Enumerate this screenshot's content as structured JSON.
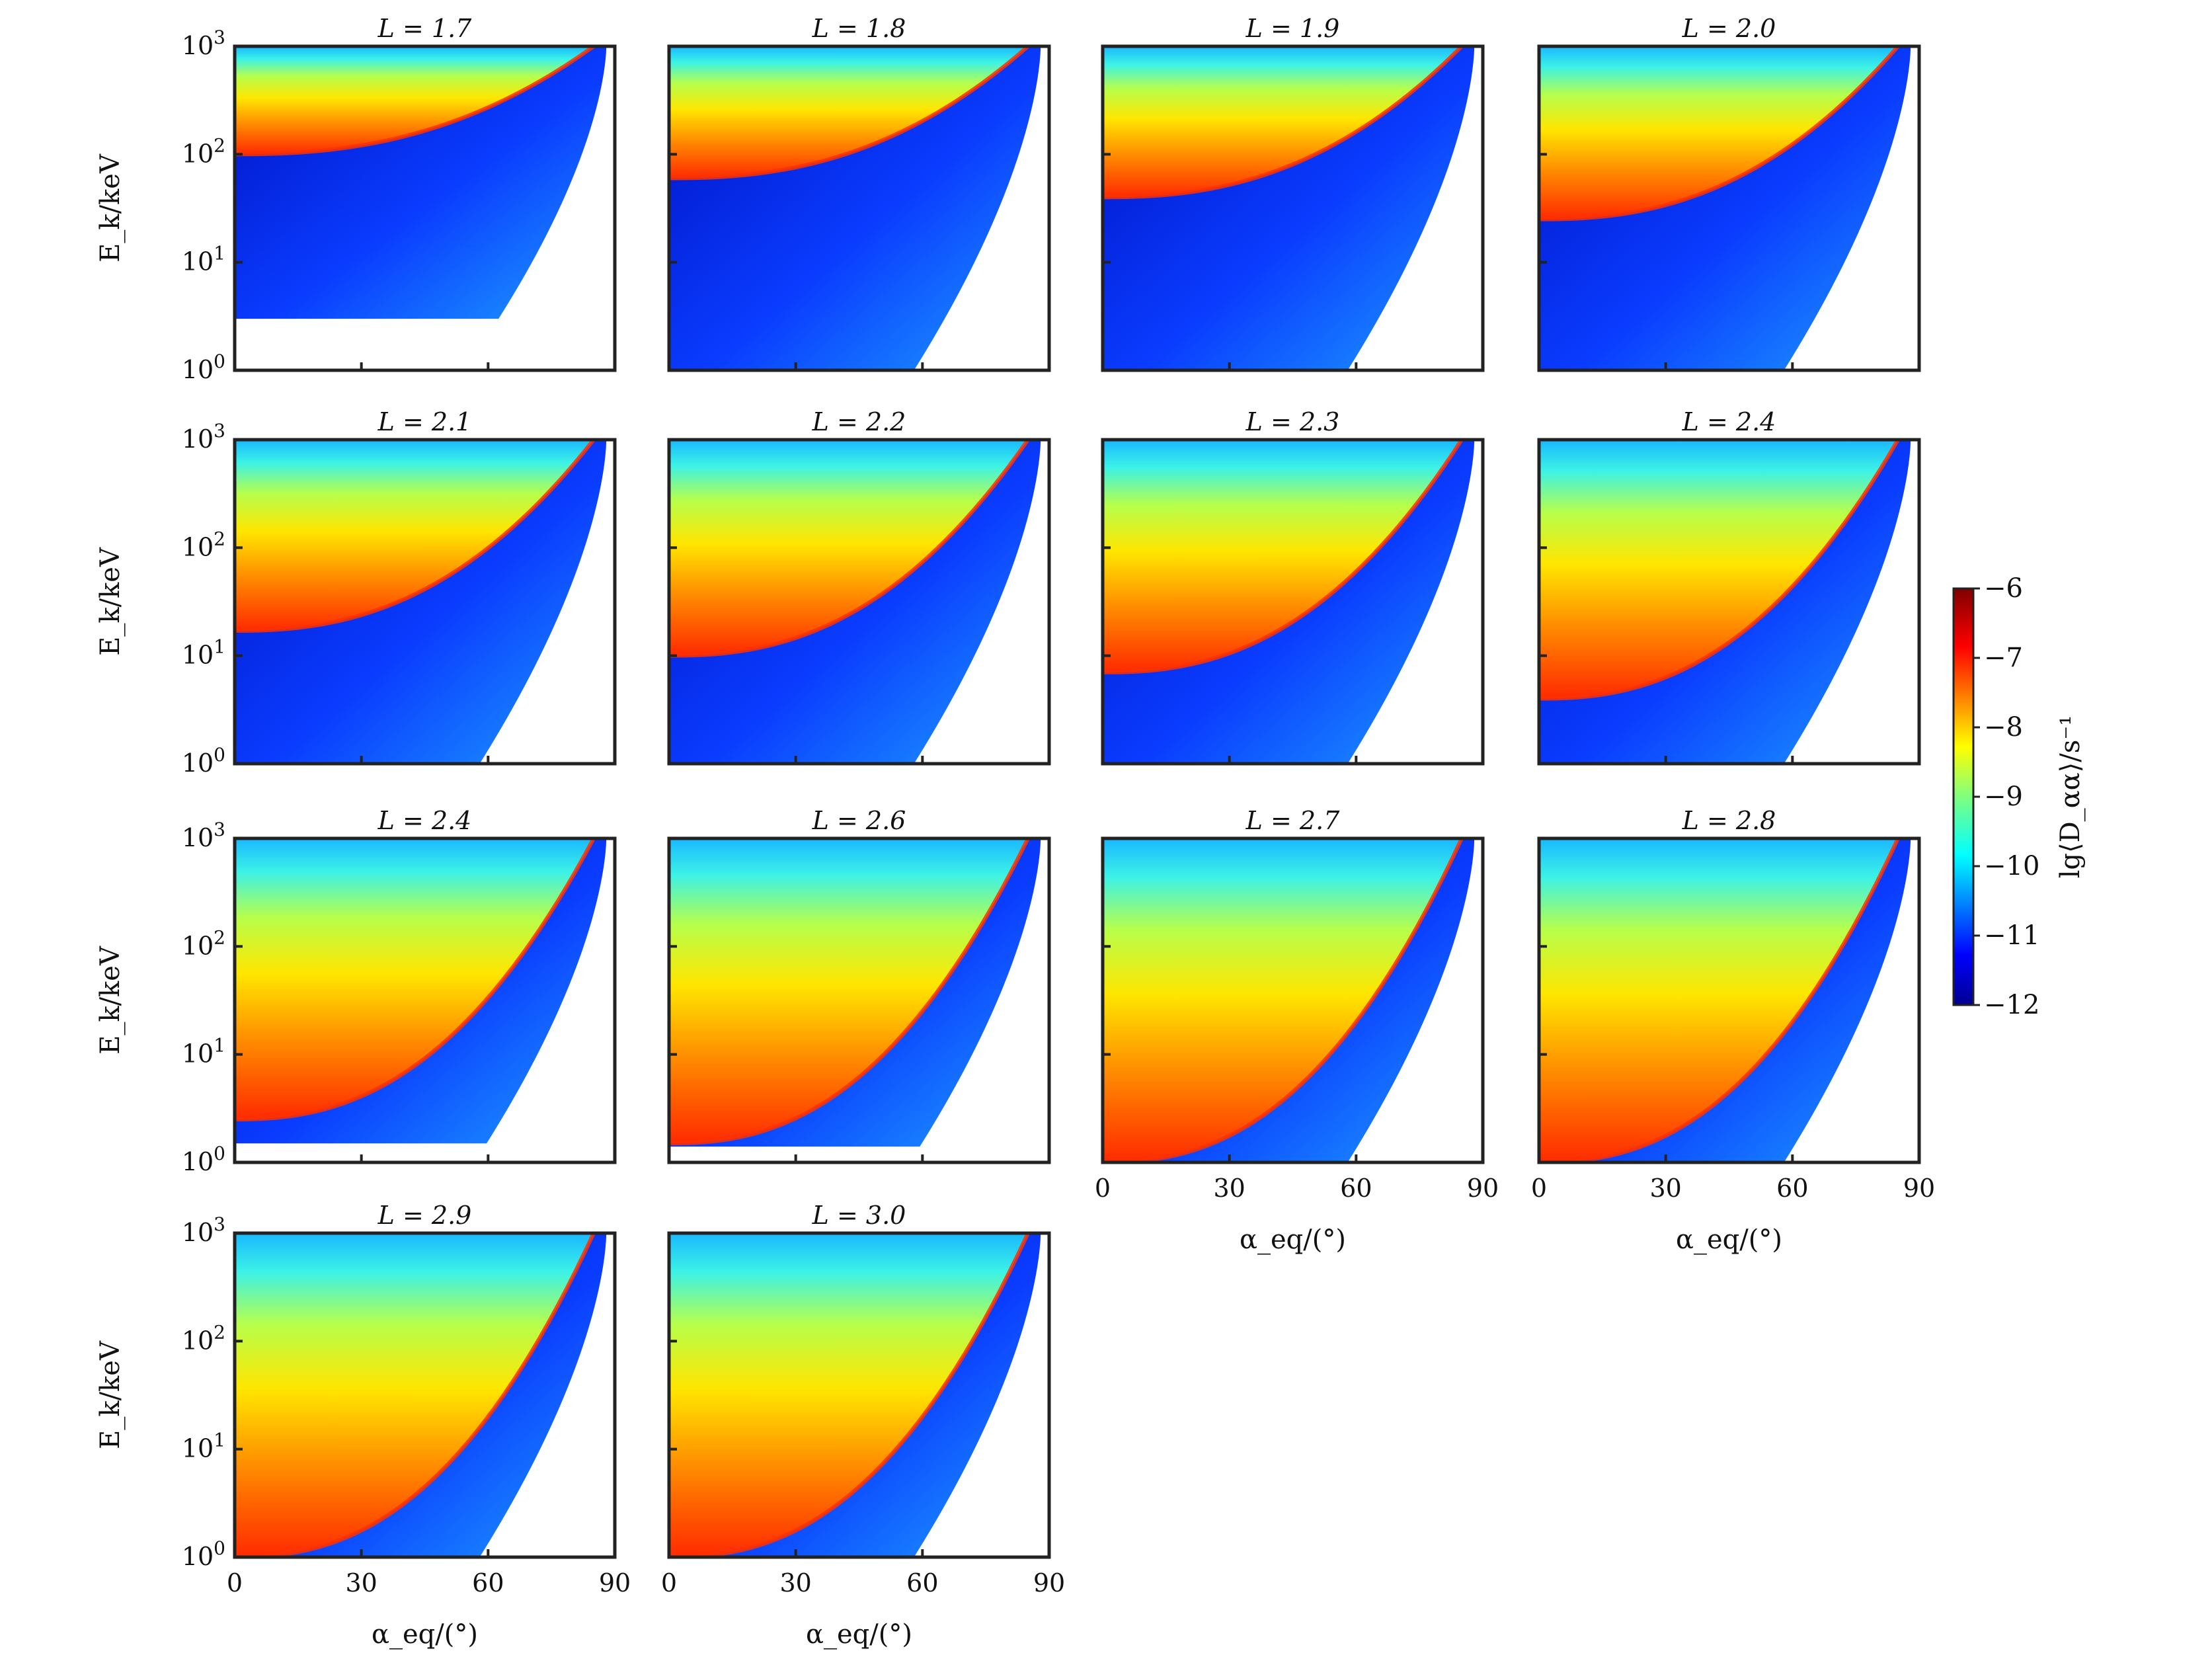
{
  "chart_data": {
    "type": "heatmap",
    "description_units": {
      "x": "degrees",
      "y": "keV",
      "color": "log10 s^-1"
    },
    "xlabel": "α_eq/(°)",
    "ylabel": "E_k/keV",
    "xlim": [
      0,
      90
    ],
    "ylim": [
      1,
      1000
    ],
    "yscale": "log",
    "xticks": [
      0,
      30,
      60,
      90
    ],
    "yticks": [
      "10^0",
      "10^1",
      "10^2",
      "10^3"
    ],
    "colorbar": {
      "label": "lg⟨D_αα⟩/s⁻¹",
      "range": [
        -12,
        -6
      ],
      "ticks": [
        -6,
        -7,
        -8,
        -9,
        -10,
        -11,
        -12
      ],
      "colormap": "jet",
      "placement": "right"
    },
    "panels": [
      {
        "title": "L = 1.7",
        "row": 0,
        "col": 0,
        "boundary_keV": 100,
        "inner_keV": 3
      },
      {
        "title": "L = 1.8",
        "row": 0,
        "col": 1,
        "boundary_keV": 60,
        "inner_keV": 1
      },
      {
        "title": "L = 1.9",
        "row": 0,
        "col": 2,
        "boundary_keV": 40,
        "inner_keV": 1
      },
      {
        "title": "L = 2.0",
        "row": 0,
        "col": 3,
        "boundary_keV": 25,
        "inner_keV": 1
      },
      {
        "title": "L = 2.1",
        "row": 1,
        "col": 0,
        "boundary_keV": 17,
        "inner_keV": 1
      },
      {
        "title": "L = 2.2",
        "row": 1,
        "col": 1,
        "boundary_keV": 10,
        "inner_keV": 1
      },
      {
        "title": "L = 2.3",
        "row": 1,
        "col": 2,
        "boundary_keV": 7,
        "inner_keV": 1
      },
      {
        "title": "L = 2.4",
        "row": 1,
        "col": 3,
        "boundary_keV": 4,
        "inner_keV": 1
      },
      {
        "title": "L = 2.4",
        "row": 2,
        "col": 0,
        "boundary_keV": 2.5,
        "inner_keV": 1.5
      },
      {
        "title": "L = 2.6",
        "row": 2,
        "col": 1,
        "boundary_keV": 1.5,
        "inner_keV": 1.4
      },
      {
        "title": "L = 2.7",
        "row": 2,
        "col": 2,
        "boundary_keV": 1,
        "inner_keV": 1
      },
      {
        "title": "L = 2.8",
        "row": 2,
        "col": 3,
        "boundary_keV": 1,
        "inner_keV": 1
      },
      {
        "title": "L = 2.9",
        "row": 3,
        "col": 0,
        "boundary_keV": 1,
        "inner_keV": 1
      },
      {
        "title": "L = 3.0",
        "row": 3,
        "col": 1,
        "boundary_keV": 1,
        "inner_keV": 1
      }
    ]
  }
}
